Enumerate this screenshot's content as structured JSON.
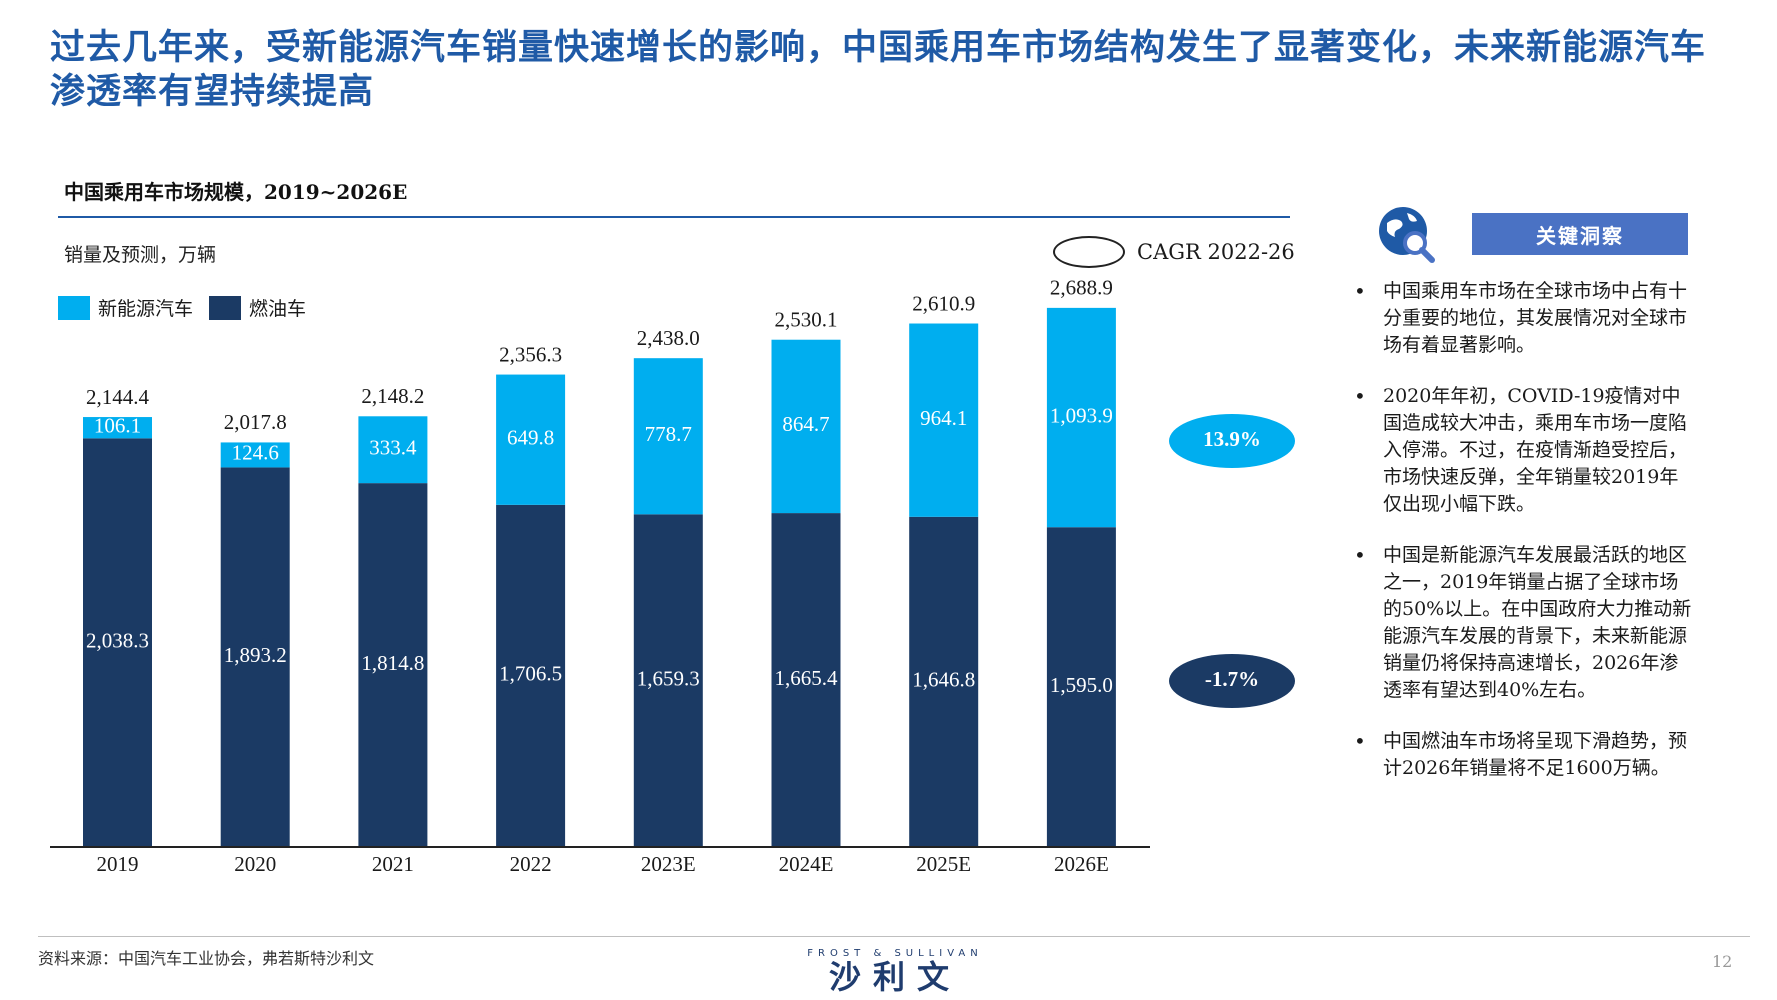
{
  "headline": "过去几年来，受新能源汽车销量快速增长的影响，中国乘用车市场结构发生了显著变化，未来新能源汽车渗透率有望持续提高",
  "chart_data": {
    "type": "bar",
    "stacked": true,
    "title": "中国乘用车市场规模，2019~2026E",
    "ylabel": "销量及预测，万辆",
    "categories": [
      "2019",
      "2020",
      "2021",
      "2022",
      "2023E",
      "2024E",
      "2025E",
      "2026E"
    ],
    "series": [
      {
        "name": "燃油车",
        "color": "#1b3a64",
        "values": [
          2038.3,
          1893.2,
          1814.8,
          1706.5,
          1659.3,
          1665.4,
          1646.8,
          1595.0
        ],
        "labels": [
          "2,038.3",
          "1,893.2",
          "1,814.8",
          "1,706.5",
          "1,659.3",
          "1,665.4",
          "1,646.8",
          "1,595.0"
        ]
      },
      {
        "name": "新能源汽车",
        "color": "#00aeef",
        "values": [
          106.1,
          124.6,
          333.4,
          649.8,
          778.7,
          864.7,
          964.1,
          1093.9
        ],
        "labels": [
          "106.1",
          "124.6",
          "333.4",
          "649.8",
          "778.7",
          "864.7",
          "964.1",
          "1,093.9"
        ]
      }
    ],
    "totals": [
      "2,144.4",
      "2,017.8",
      "2,148.2",
      "2,356.3",
      "2,438.0",
      "2,530.1",
      "2,610.9",
      "2,688.9"
    ],
    "cagr": {
      "legend_label": "CAGR  2022-26",
      "nev": {
        "value": "13.9%",
        "color": "#00aeef"
      },
      "ice": {
        "value": "-1.7%",
        "color": "#1b3a64"
      }
    },
    "ylim": [
      0,
      3000
    ],
    "legend_position": "top-left",
    "grid": false
  },
  "insights": {
    "header": "关键洞察",
    "icon": "globe-search-icon",
    "bullets": [
      "中国乘用车市场在全球市场中占有十分重要的地位，其发展情况对全球市场有着显著影响。",
      "2020年年初，COVID-19疫情对中国造成较大冲击，乘用车市场一度陷入停滞。不过，在疫情渐趋受控后，市场快速反弹，全年销量较2019年仅出现小幅下跌。",
      "中国是新能源汽车发展最活跃的地区之一，2019年销量占据了全球市场的50%以上。在中国政府大力推动新能源汽车发展的背景下，未来新能源销量仍将保持高速增长，2026年渗透率有望达到40%左右。",
      "中国燃油车市场将呈现下滑趋势，预计2026年销量将不足1600万辆。"
    ]
  },
  "footer": {
    "source": "资料来源：中国汽车工业协会，弗若斯特沙利文",
    "brand_en": "FROST & SULLIVAN",
    "brand_cn": "沙利文",
    "page": "12"
  }
}
